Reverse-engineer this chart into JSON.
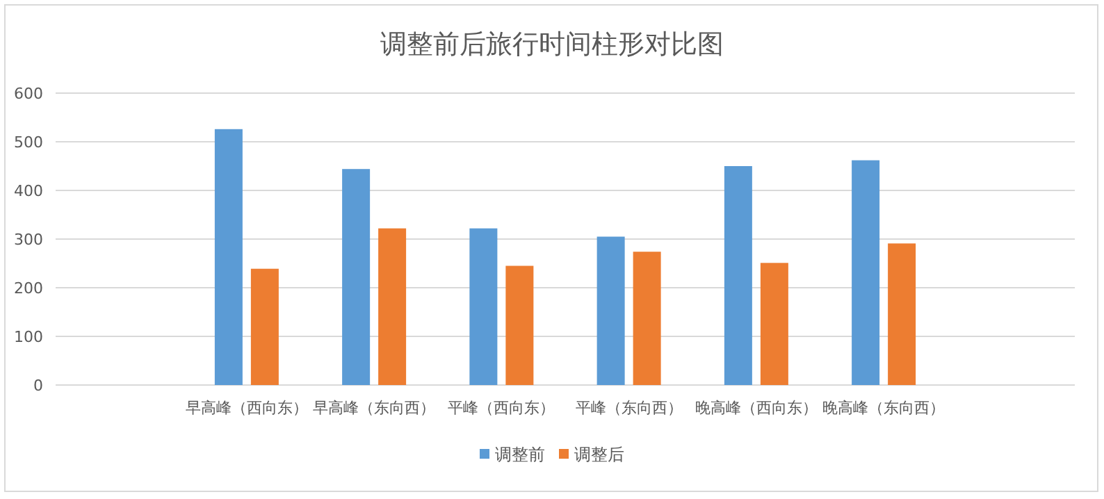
{
  "chart_data": {
    "type": "bar",
    "title": "调整前后旅行时间柱形对比图",
    "categories": [
      null,
      "早高峰（西向东）",
      "早高峰（东向西）",
      "平峰（西向东）",
      "平峰（东向西）",
      "晚高峰（西向东）",
      "晚高峰（东向西）",
      null
    ],
    "series": [
      {
        "name": "调整前",
        "color": "#5b9bd5",
        "values": [
          null,
          526,
          444,
          322,
          305,
          450,
          462,
          null
        ]
      },
      {
        "name": "调整后",
        "color": "#ed7d31",
        "values": [
          null,
          239,
          322,
          245,
          274,
          251,
          291,
          null
        ]
      }
    ],
    "ylim": [
      0,
      600
    ],
    "yticks": [
      0,
      100,
      200,
      300,
      400,
      500,
      600
    ],
    "grid": "y",
    "legend": "bottom"
  }
}
